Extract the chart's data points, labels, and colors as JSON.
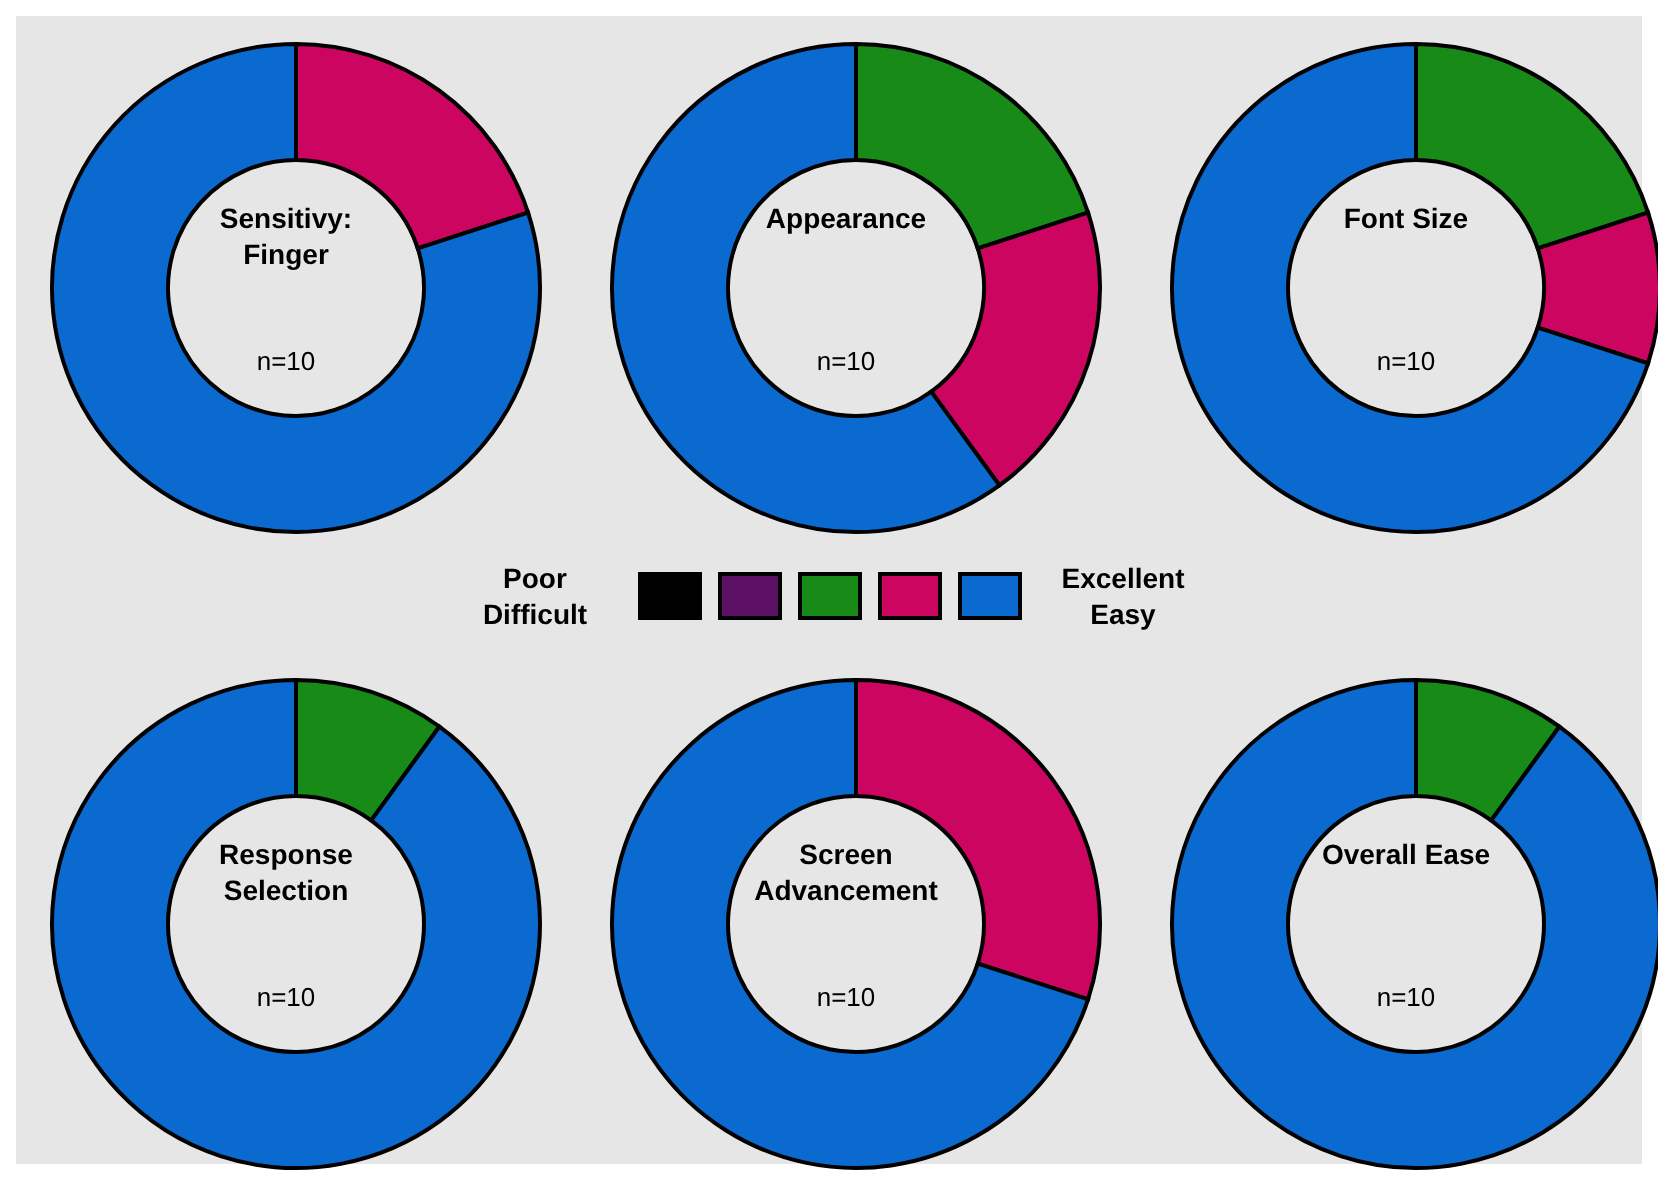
{
  "chart_data": [
    {
      "type": "donut",
      "title": "Sensitivy: Finger",
      "annotations": [
        "n=10"
      ],
      "categories": [
        "Poor Difficult",
        null,
        null,
        null,
        "Excellent Easy"
      ],
      "values": [
        0,
        0,
        0,
        20,
        80
      ],
      "colors": [
        "#000000",
        "#5c1065",
        "#178a17",
        "#cc0660",
        "#0a6ad0"
      ],
      "legend": "bottom"
    },
    {
      "type": "donut",
      "title": "Appearance",
      "annotations": [
        "n=10"
      ],
      "values": [
        0,
        0,
        20,
        20,
        60
      ],
      "colors": [
        "#000000",
        "#5c1065",
        "#178a17",
        "#cc0660",
        "#0a6ad0"
      ]
    },
    {
      "type": "donut",
      "title": "Font Size",
      "annotations": [
        "n=10"
      ],
      "values": [
        0,
        0,
        20,
        10,
        70
      ],
      "colors": [
        "#000000",
        "#5c1065",
        "#178a17",
        "#cc0660",
        "#0a6ad0"
      ]
    },
    {
      "type": "donut",
      "title": "Response Selection",
      "annotations": [
        "n=10"
      ],
      "values": [
        0,
        0,
        10,
        0,
        90
      ],
      "colors": [
        "#000000",
        "#5c1065",
        "#178a17",
        "#cc0660",
        "#0a6ad0"
      ]
    },
    {
      "type": "donut",
      "title": "Screen Advancement",
      "annotations": [
        "n=10"
      ],
      "values": [
        0,
        0,
        0,
        30,
        70
      ],
      "colors": [
        "#000000",
        "#5c1065",
        "#178a17",
        "#cc0660",
        "#0a6ad0"
      ]
    },
    {
      "type": "donut",
      "title": "Overall Ease",
      "annotations": [
        "n=10"
      ],
      "values": [
        0,
        0,
        10,
        0,
        90
      ],
      "colors": [
        "#000000",
        "#5c1065",
        "#178a17",
        "#cc0660",
        "#0a6ad0"
      ]
    }
  ]
}
